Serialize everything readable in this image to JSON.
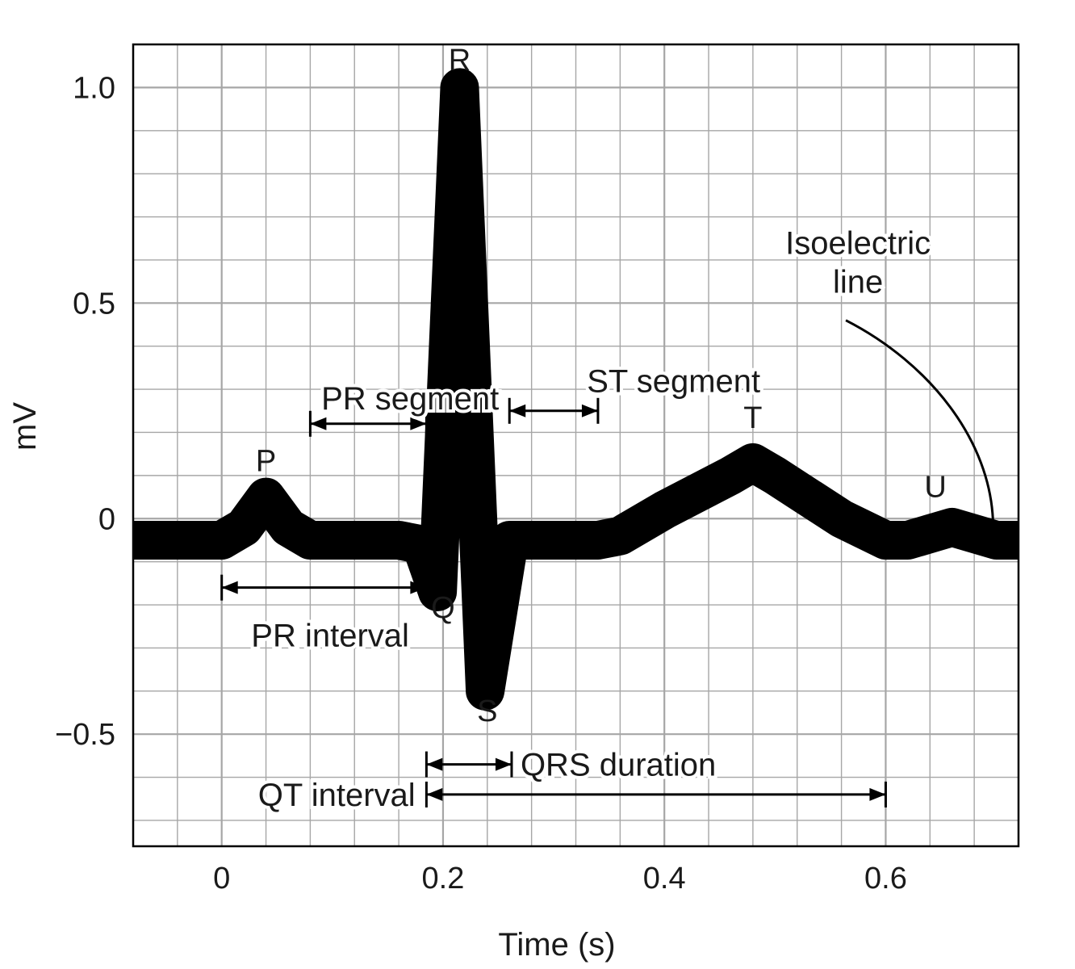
{
  "chart_data": {
    "type": "line",
    "xlabel": "Time (s)",
    "ylabel": "mV",
    "xlim": [
      -0.08,
      0.72
    ],
    "ylim": [
      -0.76,
      1.1
    ],
    "x_ticks": [
      0,
      0.2,
      0.4,
      0.6
    ],
    "x_tick_labels": [
      "0",
      "0.2",
      "0.4",
      "0.6"
    ],
    "y_ticks": [
      1.0,
      0.5,
      0,
      -0.5
    ],
    "y_tick_labels": [
      "1.0",
      "0.5",
      "0",
      "−0.5"
    ],
    "grid": true,
    "grid_minor_x_step": 0.04,
    "grid_minor_y_step": 0.1,
    "colors": {
      "trace": "#000000",
      "grid": "#a6a6a6",
      "axis": "#000000",
      "text": "#1a1a1a"
    },
    "trace_thickness_mv": 0.09,
    "series": [
      {
        "x": [
          -0.08,
          0.0,
          0.02,
          0.04,
          0.06,
          0.08,
          0.1,
          0.16,
          0.18,
          0.195,
          0.215,
          0.238,
          0.26,
          0.28,
          0.34,
          0.36,
          0.4,
          0.46,
          0.48,
          0.5,
          0.56,
          0.6,
          0.62,
          0.66,
          0.7,
          0.72
        ],
        "y": [
          -0.05,
          -0.05,
          -0.02,
          0.05,
          -0.02,
          -0.05,
          -0.05,
          -0.05,
          -0.06,
          -0.17,
          1.0,
          -0.4,
          -0.05,
          -0.05,
          -0.05,
          -0.04,
          0.02,
          0.1,
          0.13,
          0.1,
          0.0,
          -0.05,
          -0.05,
          -0.02,
          -0.05,
          -0.05
        ]
      }
    ],
    "wave_labels": [
      {
        "text": "P",
        "x": 0.04,
        "y": 0.11
      },
      {
        "text": "R",
        "x": 0.215,
        "y": 1.04
      },
      {
        "text": "Q",
        "x": 0.2,
        "y": -0.23
      },
      {
        "text": "S",
        "x": 0.24,
        "y": -0.47
      },
      {
        "text": "T",
        "x": 0.48,
        "y": 0.21
      },
      {
        "text": "U",
        "x": 0.645,
        "y": 0.05
      }
    ],
    "annotations": [
      {
        "text": "PR segment",
        "x_start": 0.08,
        "x_end": 0.185,
        "y": 0.22,
        "label_x": 0.09,
        "label_y": 0.28
      },
      {
        "text": "ST segment",
        "x_start": 0.26,
        "x_end": 0.34,
        "y": 0.25,
        "label_x": 0.33,
        "label_y": 0.32
      },
      {
        "text": "PR interval",
        "x_start": 0.0,
        "x_end": 0.185,
        "y": -0.16,
        "label_x": 0.098,
        "label_y": -0.27
      },
      {
        "text": "QRS duration",
        "x_start": 0.185,
        "x_end": 0.262,
        "y": -0.57,
        "label_x": 0.27,
        "label_y": -0.57
      },
      {
        "text": "QT interval",
        "x_start": 0.185,
        "x_end": 0.6,
        "y": -0.64,
        "label_x": 0.175,
        "label_y": -0.64
      }
    ],
    "callout": {
      "text_lines": [
        "Isoelectric",
        "line"
      ],
      "label_x": 0.575,
      "label_y": [
        0.64,
        0.55
      ]
    }
  }
}
